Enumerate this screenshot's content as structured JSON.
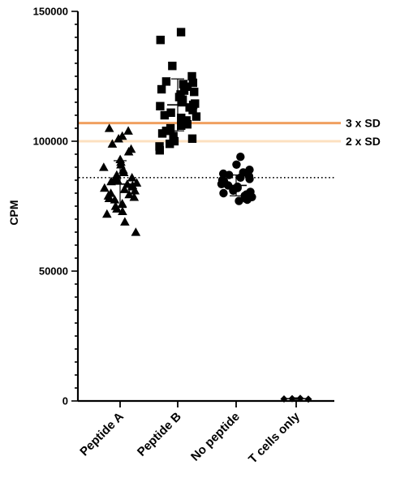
{
  "chart_data": {
    "type": "scatter",
    "title": "",
    "xlabel": "",
    "ylabel": "CPM",
    "ylim": [
      0,
      150000
    ],
    "y_ticks": [
      0,
      50000,
      100000,
      150000
    ],
    "y_tick_labels": [
      "0",
      "50000",
      "100000",
      "150000"
    ],
    "y_minor_step": 5000,
    "categories": [
      "Peptide A",
      "Peptide B",
      "No peptide",
      "T cells only"
    ],
    "series": [
      {
        "category": "Peptide A",
        "marker": "triangle",
        "mean": 83500,
        "sd": 9000,
        "values": [
          105000,
          104000,
          102000,
          101000,
          99000,
          97000,
          96000,
          93000,
          92000,
          91000,
          90000,
          89000,
          88000,
          87000,
          86000,
          85500,
          85000,
          84500,
          84000,
          83500,
          83000,
          82500,
          82000,
          81500,
          81000,
          80000,
          79500,
          79000,
          78500,
          78000,
          77500,
          76000,
          75000,
          74000,
          73000,
          72000,
          69000,
          65000
        ]
      },
      {
        "category": "Peptide B",
        "marker": "square",
        "mean": 114000,
        "sd": 10000,
        "values": [
          142000,
          139000,
          129000,
          125000,
          123000,
          122500,
          122000,
          121000,
          120000,
          119500,
          119000,
          118000,
          117000,
          116000,
          115000,
          114500,
          114000,
          113500,
          113000,
          112000,
          111000,
          110000,
          109500,
          109000,
          108000,
          107000,
          106500,
          106000,
          105000,
          104000,
          103000,
          102000,
          101000,
          100000,
          99000,
          98000,
          96500
        ]
      },
      {
        "category": "No peptide",
        "marker": "circle",
        "mean": 83000,
        "sd": 4000,
        "values": [
          94000,
          91000,
          89000,
          88000,
          87500,
          87000,
          86500,
          86000,
          85500,
          85000,
          84500,
          84000,
          83500,
          83000,
          82500,
          82000,
          81500,
          81000,
          80500,
          80000,
          79500,
          79000,
          78500,
          78000,
          77500,
          77000
        ]
      },
      {
        "category": "T cells only",
        "marker": "diamond",
        "mean": 900,
        "sd": 300,
        "values": [
          800,
          900,
          1000,
          700
        ]
      }
    ],
    "reference_lines": [
      {
        "label": "3 x SD",
        "value": 107000,
        "color": "#f0a060",
        "style": "solid"
      },
      {
        "label": "2 x SD",
        "value": 100000,
        "color": "#fce0c0",
        "style": "solid"
      },
      {
        "label": "",
        "value": 86000,
        "color": "#000000",
        "style": "dotted"
      }
    ],
    "grid": false,
    "legend": "none"
  }
}
